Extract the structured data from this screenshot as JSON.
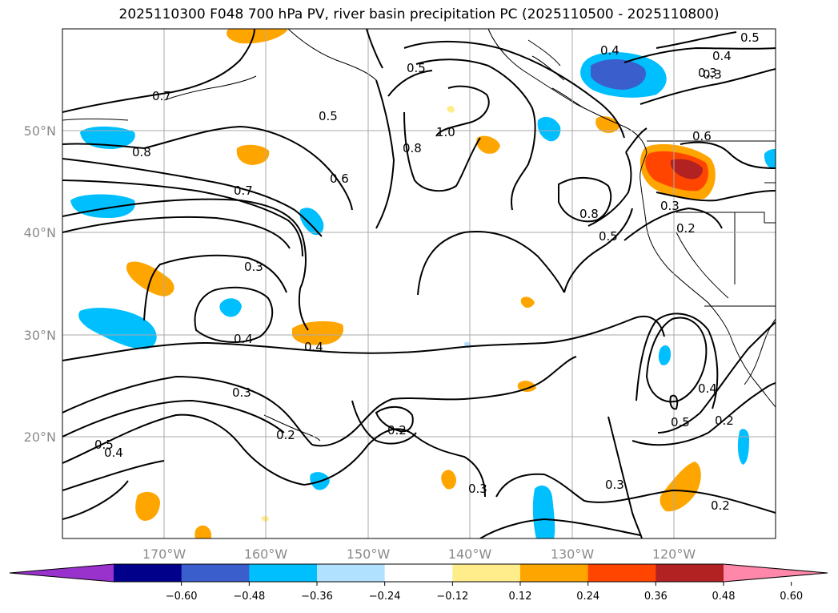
{
  "title": "2025110300 F048 700 hPa PV, river basin precipitation PC (2025110500 - 2025110800)",
  "longitude_labels": [
    "170°W",
    "160°W",
    "150°W",
    "140°W",
    "130°W",
    "120°W"
  ],
  "latitude_labels": [
    "50°N",
    "40°N",
    "30°N",
    "20°N"
  ],
  "contour_labels": [
    "0.7",
    "0.8",
    "0.7",
    "0.5",
    "0.5",
    "0.6",
    "0.4",
    "0.3",
    "0.8",
    "1.0",
    "0.8",
    "0.5",
    "0.4",
    "0.3",
    "0.6",
    "0.3",
    "0.2",
    "0.3",
    "0.4",
    "0.4",
    "0.3",
    "0.2",
    "0.2",
    "0.5",
    "0.4",
    "0.3",
    "0.4",
    "0.5",
    "0.2",
    "0.2",
    "0.3",
    "0.5"
  ],
  "colorbar": {
    "ticks": [
      "−0.60",
      "−0.48",
      "−0.36",
      "−0.24",
      "−0.12",
      "0.12",
      "0.24",
      "0.36",
      "0.48",
      "0.60"
    ],
    "colors": [
      "#9932cc",
      "#00008b",
      "#3a5fcd",
      "#00bfff",
      "#b0e2ff",
      "#ffffff",
      "#ffec8b",
      "#ffa500",
      "#ff4500",
      "#b22222",
      "#ff88aa"
    ]
  }
}
